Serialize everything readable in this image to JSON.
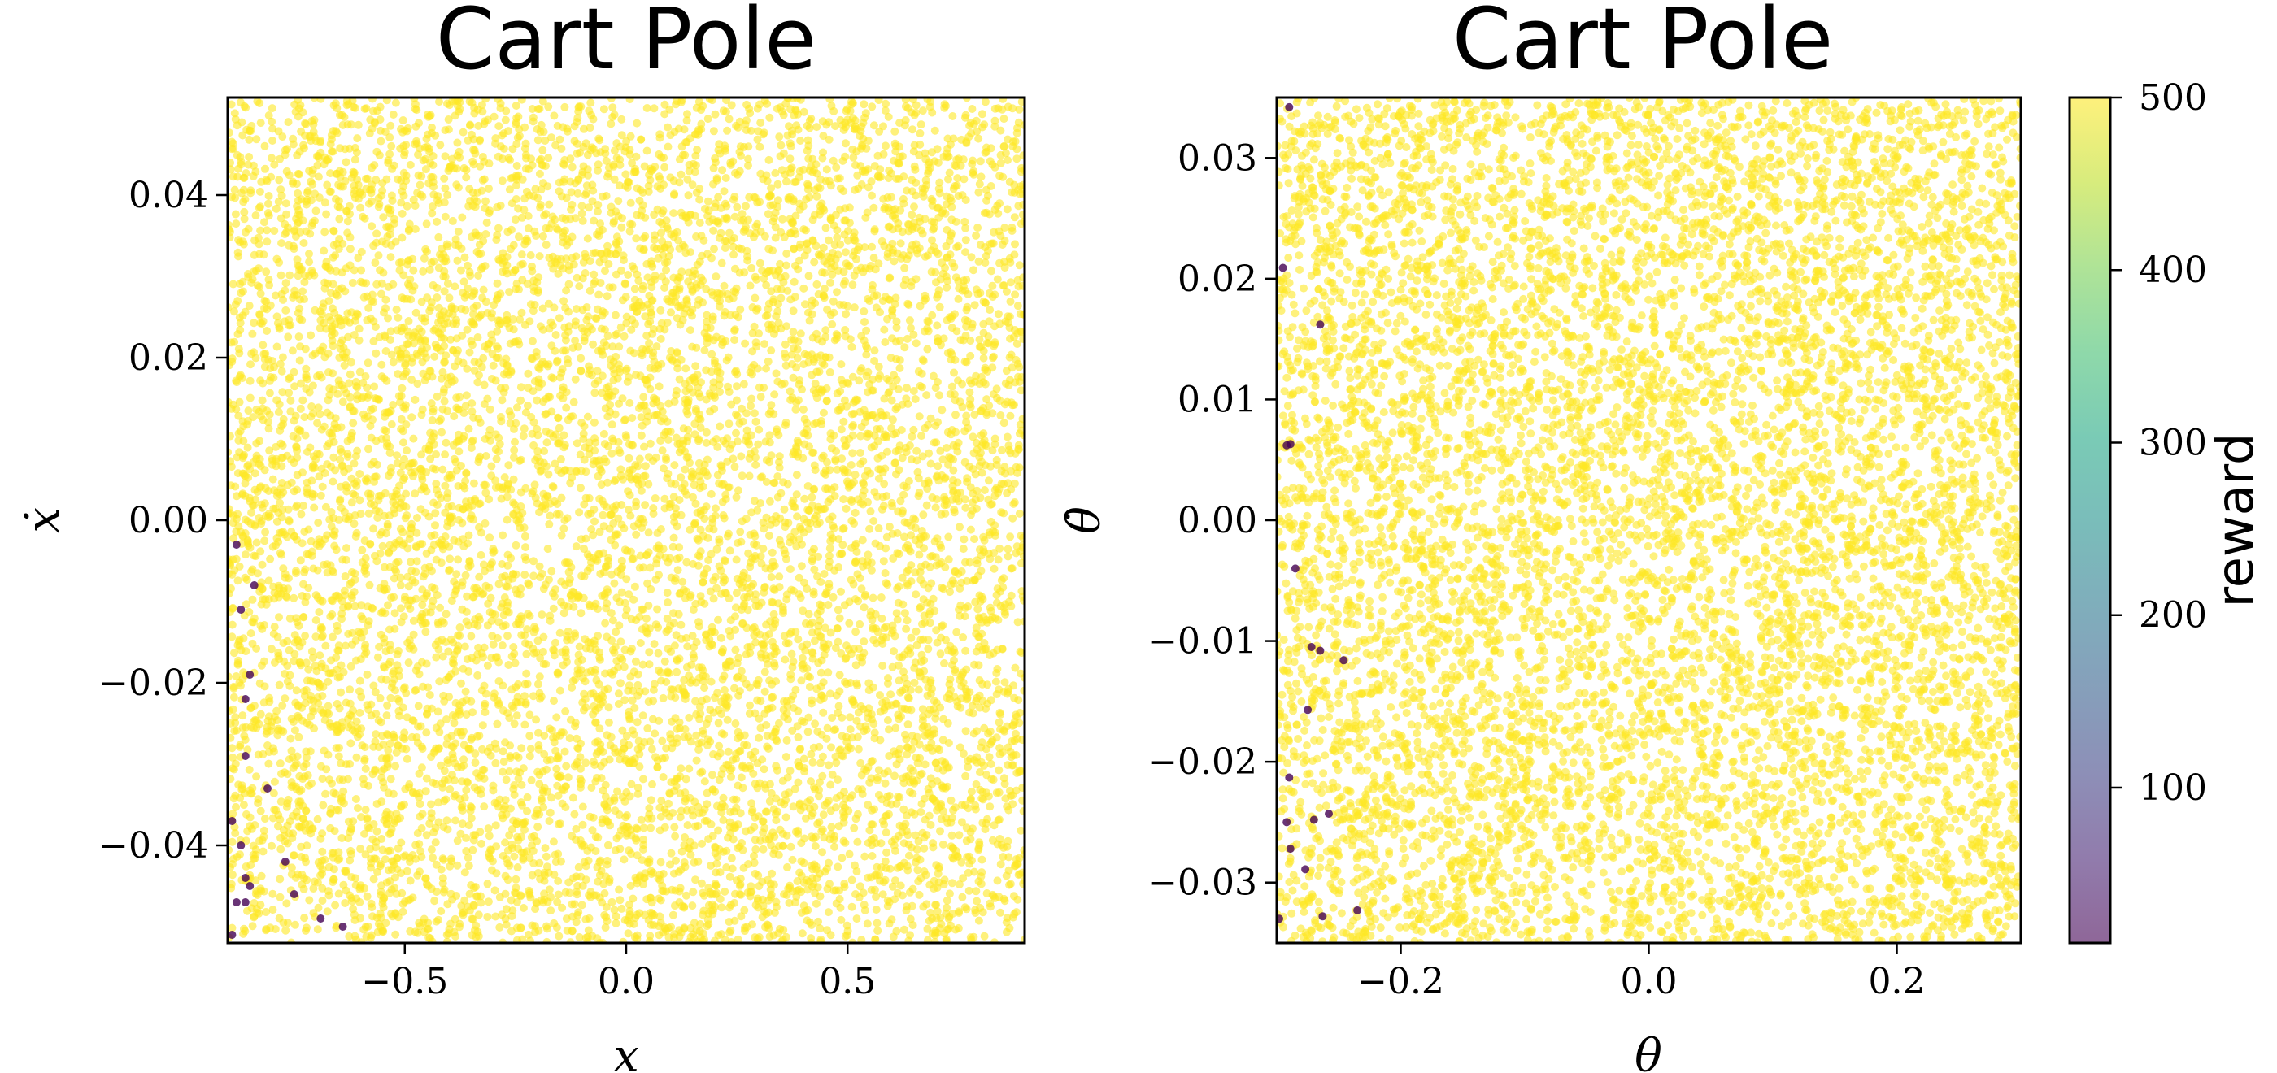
{
  "chart_data": [
    {
      "type": "scatter",
      "title": "Cart Pole",
      "xlabel": "x",
      "ylabel": "ẋ",
      "xlim": [
        -0.9,
        0.9
      ],
      "ylim": [
        -0.052,
        0.052
      ],
      "xticks": [
        -0.5,
        0.0,
        0.5
      ],
      "yticks": [
        -0.04,
        -0.02,
        0.0,
        0.02,
        0.04
      ],
      "xtick_labels": [
        "−0.5",
        "0.0",
        "0.5"
      ],
      "ytick_labels": [
        "−0.04",
        "−0.02",
        "0.00",
        "0.02",
        "0.04"
      ],
      "background_points": {
        "approx_count": 9000,
        "reward": 500,
        "distribution": "uniform over full axis range"
      },
      "low_reward_points": {
        "reward": 10,
        "x": [
          -0.88,
          -0.84,
          -0.87,
          -0.85,
          -0.86,
          -0.86,
          -0.81,
          -0.89,
          -0.87,
          -0.86,
          -0.85,
          -0.86,
          -0.88,
          -0.77,
          -0.75,
          -0.69,
          -0.64,
          -0.89
        ],
        "y": [
          -0.003,
          -0.008,
          -0.011,
          -0.019,
          -0.022,
          -0.029,
          -0.033,
          -0.037,
          -0.04,
          -0.044,
          -0.045,
          -0.047,
          -0.047,
          -0.042,
          -0.046,
          -0.049,
          -0.05,
          -0.051
        ]
      },
      "grid": false
    },
    {
      "type": "scatter",
      "title": "Cart Pole",
      "xlabel": "θ",
      "ylabel": "θ̇",
      "xlim": [
        -0.3,
        0.3
      ],
      "ylim": [
        -0.035,
        0.035
      ],
      "xticks": [
        -0.2,
        0.0,
        0.2
      ],
      "yticks": [
        -0.03,
        -0.02,
        -0.01,
        0.0,
        0.01,
        0.02,
        0.03
      ],
      "xtick_labels": [
        "−0.2",
        "0.0",
        "0.2"
      ],
      "ytick_labels": [
        "−0.03",
        "−0.02",
        "−0.01",
        "0.00",
        "0.01",
        "0.02",
        "0.03"
      ],
      "background_points": {
        "approx_count": 9000,
        "reward": 500,
        "distribution": "uniform over full axis range"
      },
      "low_reward_points": {
        "reward": 10,
        "x": [
          -0.29,
          -0.295,
          -0.265,
          -0.292,
          -0.289,
          -0.285,
          -0.272,
          -0.265,
          -0.246,
          -0.275,
          -0.29,
          -0.27,
          -0.258,
          -0.292,
          -0.289,
          -0.277,
          -0.263,
          -0.235,
          -0.298
        ],
        "y": [
          0.0342,
          0.0209,
          0.0162,
          0.0062,
          0.0063,
          -0.004,
          -0.0105,
          -0.0108,
          -0.0116,
          -0.0157,
          -0.0213,
          -0.0248,
          -0.0243,
          -0.025,
          -0.0272,
          -0.0289,
          -0.0328,
          -0.0323,
          -0.033
        ]
      },
      "grid": false
    }
  ],
  "colorbar": {
    "label": "reward",
    "range": [
      10,
      500
    ],
    "ticks": [
      100,
      200,
      300,
      400,
      500
    ],
    "colormap": "viridis",
    "alpha": 0.6
  },
  "colors": {
    "high_reward": "#fde725",
    "low_reward": "#440154"
  }
}
